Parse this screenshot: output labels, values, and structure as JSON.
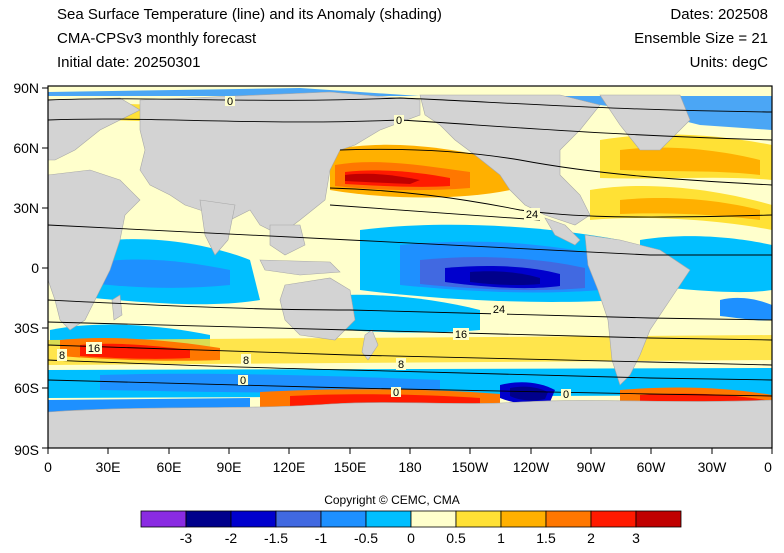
{
  "header": {
    "title": "Sea Surface Temperature (line) and its Anomaly (shading)",
    "model": "CMA-CPSv3 monthly forecast",
    "initial_date": "Initial date: 20250301",
    "dates": "Dates: 202508",
    "ensemble": "Ensemble Size = 21",
    "units": "Units: degC"
  },
  "axes": {
    "y_ticks": [
      "90N",
      "60N",
      "30N",
      "0",
      "30S",
      "60S",
      "90S"
    ],
    "x_ticks": [
      "0",
      "30E",
      "60E",
      "90E",
      "120E",
      "150E",
      "180",
      "150W",
      "120W",
      "90W",
      "60W",
      "30W",
      "0"
    ]
  },
  "contour_labels": [
    "0",
    "0",
    "24",
    "24",
    "16",
    "16",
    "8",
    "8",
    "8",
    "0",
    "0",
    "0"
  ],
  "colorbar": {
    "colors": [
      "#8a2be2",
      "#00008b",
      "#0000cd",
      "#4169e1",
      "#1e90ff",
      "#00bfff",
      "#ffffcc",
      "#ffe135",
      "#ffb000",
      "#ff7700",
      "#ff1a00",
      "#c00000"
    ],
    "labels": [
      "-3",
      "-2",
      "-1.5",
      "-1",
      "-0.5",
      "0",
      "0.5",
      "1",
      "1.5",
      "2",
      "3"
    ]
  },
  "copyright": "Copyright © CEMC, CMA",
  "colors": {
    "land": "#d3d3d3",
    "contour": "#000000"
  }
}
